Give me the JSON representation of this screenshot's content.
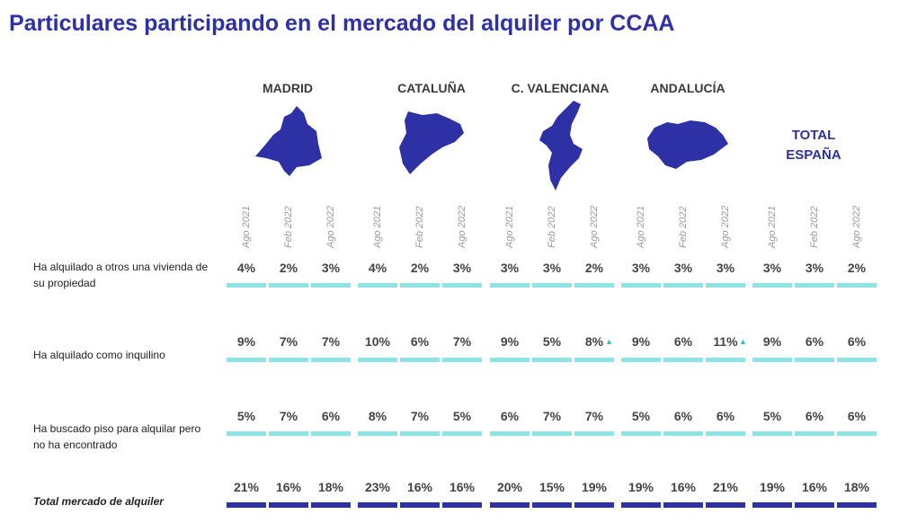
{
  "title": "Particulares participando en el mercado del alquiler por CCAA",
  "regions": [
    "MADRID",
    "CATALUÑA",
    "C. VALENCIANA",
    "ANDALUCÍA"
  ],
  "total_header": [
    "TOTAL",
    "ESPAÑA"
  ],
  "periods": [
    "Ago 2021",
    "Feb 2022",
    "Ago 2022"
  ],
  "row_labels": [
    [
      "Ha alquilado a otros una vivienda de",
      "su propiedad"
    ],
    [
      "Ha alquilado como inquilino"
    ],
    [
      "Ha buscado piso para alquilar pero",
      "no ha encontrado"
    ],
    [
      "Total mercado de alquiler"
    ]
  ],
  "colors": {
    "title": "#2e31a6",
    "map": "#2e31a6",
    "bar": "#8ee4e4",
    "total_bar": "#2e31a6",
    "triangle": "#2ec3c3"
  },
  "icons": [
    "madrid-map-icon",
    "cataluna-map-icon",
    "valenciana-map-icon",
    "andalucia-map-icon",
    "up-triangle-icon"
  ],
  "chart_data": {
    "type": "table",
    "columns": [
      "MADRID",
      "CATALUÑA",
      "C. VALENCIANA",
      "ANDALUCÍA",
      "TOTAL ESPAÑA"
    ],
    "periods": [
      "Ago 2021",
      "Feb 2022",
      "Ago 2022"
    ],
    "rows": [
      {
        "label": "Ha alquilado a otros una vivienda de su propiedad",
        "values": [
          "4%",
          "2%",
          "3%",
          "4%",
          "2%",
          "3%",
          "3%",
          "3%",
          "2%",
          "3%",
          "3%",
          "3%",
          "3%",
          "3%",
          "2%"
        ]
      },
      {
        "label": "Ha alquilado como inquilino",
        "values": [
          "9%",
          "7%",
          "7%",
          "10%",
          "6%",
          "7%",
          "9%",
          "5%",
          "8%",
          "9%",
          "6%",
          "11%",
          "9%",
          "6%",
          "6%"
        ],
        "up_markers": [
          8,
          11
        ]
      },
      {
        "label": "Ha buscado piso para alquilar pero no ha encontrado",
        "values": [
          "5%",
          "7%",
          "6%",
          "8%",
          "7%",
          "5%",
          "6%",
          "7%",
          "7%",
          "5%",
          "6%",
          "6%",
          "5%",
          "6%",
          "6%"
        ]
      },
      {
        "label": "Total mercado de alquiler",
        "values": [
          "21%",
          "16%",
          "18%",
          "23%",
          "16%",
          "16%",
          "20%",
          "15%",
          "19%",
          "19%",
          "16%",
          "21%",
          "19%",
          "16%",
          "18%"
        ]
      }
    ]
  }
}
